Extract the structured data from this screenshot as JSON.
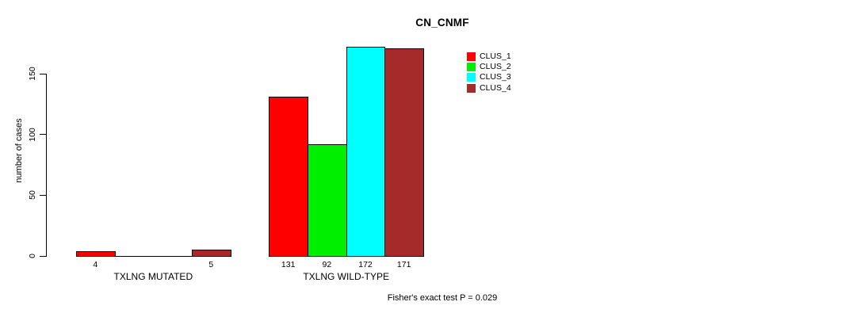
{
  "chart_data": {
    "type": "bar",
    "title": "CN_CNMF",
    "xlabel": "",
    "ylabel": "number of cases",
    "categories": [
      "TXLNG MUTATED",
      "TXLNG WILD-TYPE"
    ],
    "series": [
      {
        "name": "CLUS_1",
        "color": "#ff0000",
        "values": [
          4,
          131
        ]
      },
      {
        "name": "CLUS_2",
        "color": "#00ee00",
        "values": [
          0,
          92
        ]
      },
      {
        "name": "CLUS_3",
        "color": "#00ffff",
        "values": [
          0,
          172
        ]
      },
      {
        "name": "CLUS_4",
        "color": "#a52a2a",
        "values": [
          5,
          171
        ]
      }
    ],
    "bar_value_labels": [
      [
        "4",
        "",
        "",
        "5"
      ],
      [
        "131",
        "92",
        "172",
        "171"
      ]
    ],
    "yticks": [
      0,
      50,
      100,
      150
    ],
    "ylim": [
      0,
      172
    ],
    "grid": false,
    "legend_position": "top-right",
    "bar_border_color": "#000000",
    "annotation": "Fisher's exact test P = 0.029"
  }
}
